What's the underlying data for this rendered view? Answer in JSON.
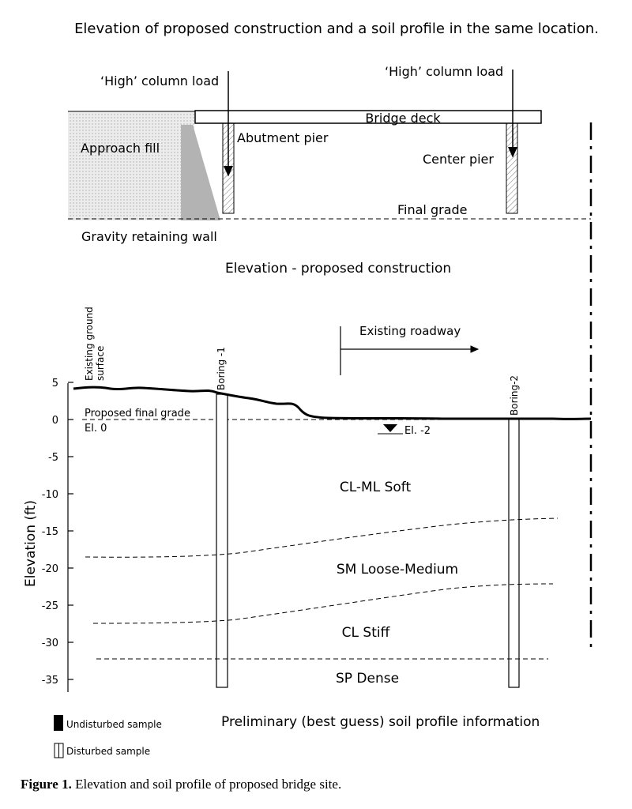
{
  "title": "Elevation of proposed construction and a soil profile in the same location.",
  "elevation_view": {
    "load_label_left": "‘High’ column load",
    "load_label_right": "‘High’ column load",
    "bridge_deck": "Bridge deck",
    "abutment_pier": "Abutment pier",
    "center_pier": "Center pier",
    "approach_fill": "Approach fill",
    "final_grade": "Final grade",
    "retaining_wall": "Gravity retaining wall",
    "subtitle": "Elevation - proposed construction"
  },
  "soil_profile": {
    "ground_surface_line1": "Existing ground",
    "ground_surface_line2": "surface",
    "boring1": "Boring -1",
    "boring2": "Boring-2",
    "roadway": "Existing roadway",
    "proposed_grade": "Proposed final grade",
    "el0": "El. 0",
    "water_el": "El. -2",
    "y_axis_label": "Elevation (ft)",
    "y_ticks": [
      "5",
      "0",
      "-5",
      "-10",
      "-15",
      "-20",
      "-25",
      "-30",
      "-35"
    ],
    "layers": [
      "CL-ML Soft",
      "SM Loose-Medium",
      "CL Stiff",
      "SP Dense"
    ],
    "subtitle": "Preliminary (best guess) soil profile information"
  },
  "legend": {
    "undisturbed": "Undisturbed sample",
    "disturbed": "Disturbed sample"
  },
  "caption": {
    "label": "Figure 1.",
    "text": " Elevation and soil profile of proposed bridge site."
  }
}
